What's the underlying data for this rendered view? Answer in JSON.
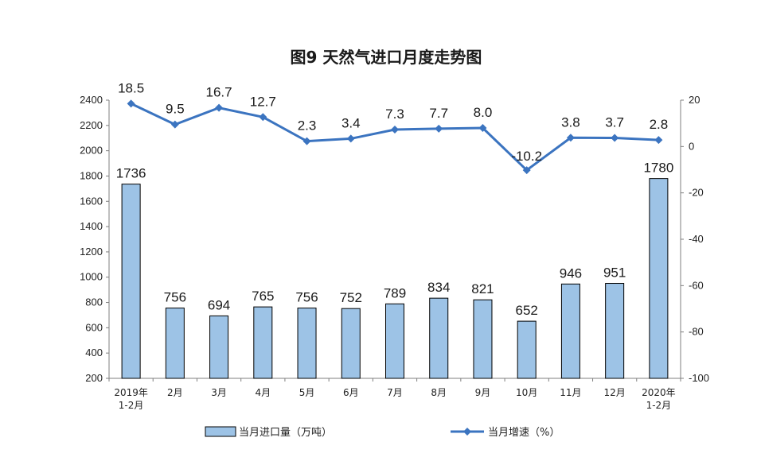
{
  "chart_data": {
    "type": "bar+line",
    "title": "图9  天然气进口月度走势图",
    "categories": [
      [
        "2019年",
        "1-2月"
      ],
      [
        "2月"
      ],
      [
        "3月"
      ],
      [
        "4月"
      ],
      [
        "5月"
      ],
      [
        "6月"
      ],
      [
        "7月"
      ],
      [
        "8月"
      ],
      [
        "9月"
      ],
      [
        "10月"
      ],
      [
        "11月"
      ],
      [
        "12月"
      ],
      [
        "2020年",
        "1-2月"
      ]
    ],
    "series": [
      {
        "name": "当月进口量（万吨）",
        "type": "bar",
        "axis": "left",
        "color": "#9DC3E6",
        "values": [
          1736,
          756,
          694,
          765,
          756,
          752,
          789,
          834,
          821,
          652,
          946,
          951,
          1780
        ],
        "labels": [
          "1736",
          "756",
          "694",
          "765",
          "756",
          "752",
          "789",
          "834",
          "821",
          "652",
          "946",
          "951",
          "1780"
        ]
      },
      {
        "name": "当月增速（%）",
        "type": "line",
        "axis": "right",
        "color": "#3B74C0",
        "marker": "diamond",
        "values": [
          18.5,
          9.5,
          16.7,
          12.7,
          2.3,
          3.4,
          7.3,
          7.7,
          8.0,
          -10.2,
          3.8,
          3.7,
          2.8
        ],
        "labels": [
          "18.5",
          "9.5",
          "16.7",
          "12.7",
          "2.3",
          "3.4",
          "7.3",
          "7.7",
          "8.0",
          "-10.2",
          "3.8",
          "3.7",
          "2.8"
        ]
      }
    ],
    "ylim_left": [
      200,
      2400
    ],
    "yticks_left": [
      "2400",
      "2200",
      "2000",
      "1800",
      "1600",
      "1400",
      "1200",
      "1000",
      "800",
      "600",
      "400",
      "200"
    ],
    "ylim_right": [
      -100,
      20
    ],
    "yticks_right": [
      "20",
      "0",
      "-20",
      "-40",
      "-60",
      "-80",
      "-100"
    ],
    "legend_position": "bottom",
    "grid": false
  }
}
